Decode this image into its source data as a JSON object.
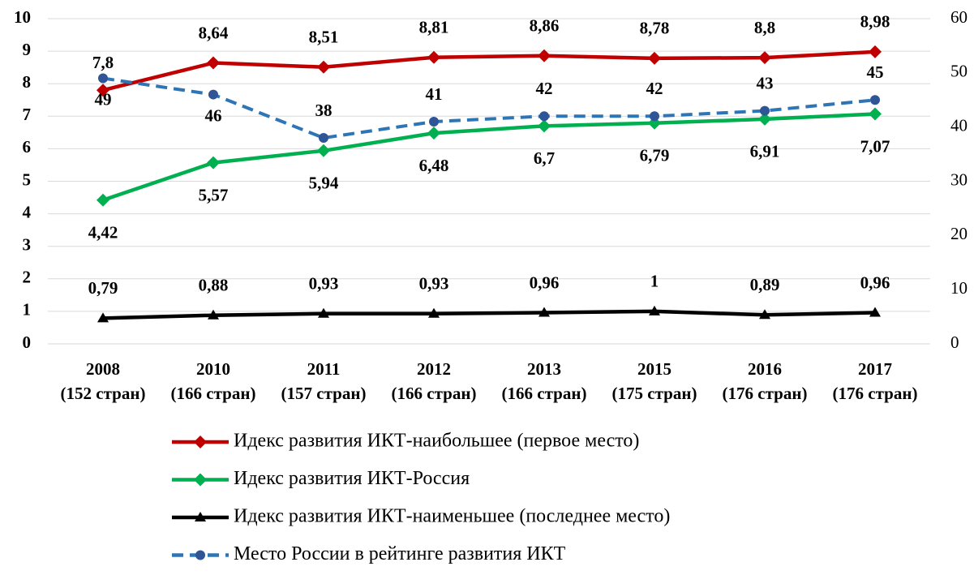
{
  "chart_data": {
    "type": "line",
    "categories": [
      [
        "2008",
        "(152 стран)"
      ],
      [
        "2010",
        "(166 стран)"
      ],
      [
        "2011",
        "(157 стран)"
      ],
      [
        "2012",
        "(166 стран)"
      ],
      [
        "2013",
        "(166 стран)"
      ],
      [
        "2015",
        "(175 стран)"
      ],
      [
        "2016",
        "(176 стран)"
      ],
      [
        "2017",
        "(176 стран)"
      ]
    ],
    "series": [
      {
        "name": "Идекс развития ИКТ-наибольшее (первое место)",
        "color": "#c00000",
        "marker": "diamond",
        "values": [
          7.8,
          8.64,
          8.51,
          8.81,
          8.86,
          8.78,
          8.8,
          8.98
        ],
        "value_labels": [
          "7,8",
          "8,64",
          "8,51",
          "8,81",
          "8,86",
          "8,78",
          "8,8",
          "8,98"
        ]
      },
      {
        "name": "Идекс развития ИКТ-Россия",
        "color": "#00b050",
        "marker": "diamond",
        "values": [
          4.42,
          5.57,
          5.94,
          6.48,
          6.7,
          6.79,
          6.91,
          7.07
        ],
        "value_labels": [
          "4,42",
          "5,57",
          "5,94",
          "6,48",
          "6,7",
          "6,79",
          "6,91",
          "7,07"
        ]
      },
      {
        "name": "Идекс развития ИКТ-наименьшее (последнее место)",
        "color": "#000000",
        "marker": "triangle",
        "values": [
          0.79,
          0.88,
          0.93,
          0.93,
          0.96,
          1,
          0.89,
          0.96
        ],
        "value_labels": [
          "0,79",
          "0,88",
          "0,93",
          "0,93",
          "0,96",
          "1",
          "0,89",
          "0,96"
        ]
      },
      {
        "name": "Место России в рейтинге развития ИКТ",
        "color": "#2e75b6",
        "marker": "circle",
        "dashed": true,
        "axis": "y2",
        "values": [
          49,
          46,
          38,
          41,
          42,
          42,
          43,
          45
        ]
      }
    ],
    "ylim": [
      0,
      10
    ],
    "yticks": [
      0,
      1,
      2,
      3,
      4,
      5,
      6,
      7,
      8,
      9,
      10
    ],
    "y2lim": [
      0,
      60
    ],
    "y2ticks": [
      0,
      10,
      20,
      30,
      40,
      50,
      60
    ],
    "grid": true,
    "legend": "bottom"
  }
}
